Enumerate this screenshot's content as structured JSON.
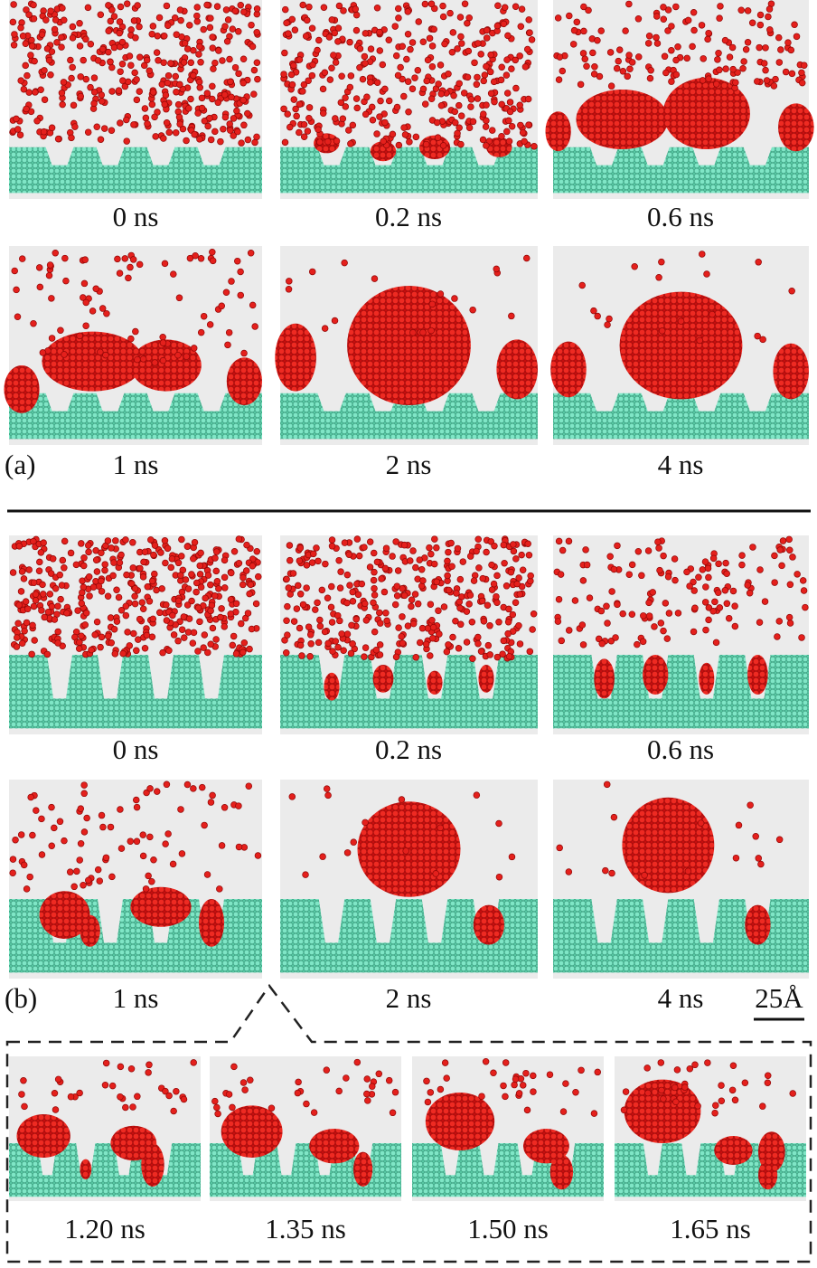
{
  "section_a": {
    "label": "(a)",
    "snapshots": [
      "0 ns",
      "0.2 ns",
      "0.6 ns",
      "1 ns",
      "2 ns",
      "4 ns"
    ]
  },
  "section_b": {
    "label": "(b)",
    "snapshots": [
      "0 ns",
      "0.2 ns",
      "0.6 ns",
      "1 ns",
      "2 ns",
      "4 ns"
    ]
  },
  "scale_bar": "25Å",
  "inset": {
    "snapshots": [
      "1.20 ns",
      "1.35 ns",
      "1.50 ns",
      "1.65 ns"
    ]
  }
}
